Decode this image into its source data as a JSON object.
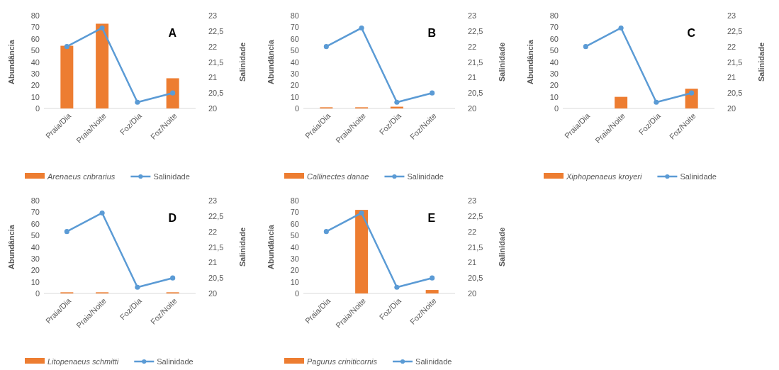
{
  "chart_data": [
    {
      "type": "bar",
      "annotations": [
        "A"
      ],
      "ylabel": "Abundância",
      "y2label": "Salinidade",
      "categories": [
        "Praia/Dia",
        "Praia/Noite",
        "Foz/Dia",
        "Foz/Noite"
      ],
      "ylim": [
        0,
        80
      ],
      "yticks": [
        0,
        10,
        20,
        30,
        40,
        50,
        60,
        70,
        80
      ],
      "y2lim": [
        20,
        23
      ],
      "y2ticks": [
        20,
        {
          "value": 20.5,
          "label": "20,5"
        },
        21,
        {
          "value": 21.5,
          "label": "21,5"
        },
        22,
        {
          "value": 22.5,
          "label": "22,5"
        },
        23
      ],
      "legend": "bottom",
      "marker": "circle",
      "series": [
        {
          "name": "Arenaeus cribrarius",
          "color": "#ed7d31",
          "values": [
            54,
            73,
            0,
            26
          ]
        },
        {
          "name": "Salinidade",
          "type": "line",
          "axis": "y2",
          "color": "#5b9bd5",
          "values": [
            22,
            22.6,
            20.2,
            20.5
          ]
        }
      ]
    },
    {
      "type": "bar",
      "annotations": [
        "B"
      ],
      "ylabel": "Abundância",
      "y2label": "Salinidade",
      "categories": [
        "Praia/Dia",
        "Praia/Noite",
        "Foz/Dia",
        "Foz/Noite"
      ],
      "ylim": [
        0,
        80
      ],
      "yticks": [
        0,
        10,
        20,
        30,
        40,
        50,
        60,
        70,
        80
      ],
      "y2lim": [
        20,
        23
      ],
      "y2ticks": [
        20,
        {
          "value": 20.5,
          "label": "20,5"
        },
        21,
        {
          "value": 21.5,
          "label": "21,5"
        },
        22,
        {
          "value": 22.5,
          "label": "22,5"
        },
        23
      ],
      "legend": "bottom",
      "marker": "circle",
      "series": [
        {
          "name": "Callinectes danae",
          "color": "#ed7d31",
          "values": [
            1,
            1,
            1.5,
            0
          ]
        },
        {
          "name": "Salinidade",
          "type": "line",
          "axis": "y2",
          "color": "#5b9bd5",
          "values": [
            22,
            22.6,
            20.2,
            20.5
          ]
        }
      ]
    },
    {
      "type": "bar",
      "annotations": [
        "C"
      ],
      "ylabel": "Abundância",
      "y2label": "Salinidade",
      "categories": [
        "Praia/Dia",
        "Praia/Noite",
        "Foz/Dia",
        "Foz/Noite"
      ],
      "ylim": [
        0,
        80
      ],
      "yticks": [
        0,
        10,
        20,
        30,
        40,
        50,
        60,
        70,
        80
      ],
      "y2lim": [
        20,
        23
      ],
      "y2ticks": [
        20,
        {
          "value": 20.5,
          "label": "20,5"
        },
        21,
        {
          "value": 21.5,
          "label": "21,5"
        },
        22,
        {
          "value": 22.5,
          "label": "22,5"
        },
        23
      ],
      "legend": "bottom",
      "marker": "circle",
      "series": [
        {
          "name": "Xiphopenaeus kroyeri",
          "color": "#ed7d31",
          "values": [
            0,
            10,
            0,
            17
          ]
        },
        {
          "name": "Salinidade",
          "type": "line",
          "axis": "y2",
          "color": "#5b9bd5",
          "values": [
            22,
            22.6,
            20.2,
            20.5
          ]
        }
      ]
    },
    {
      "type": "bar",
      "annotations": [
        "D"
      ],
      "ylabel": "Abundância",
      "y2label": "Salinidade",
      "categories": [
        "Praia/Dia",
        "Praia/Noite",
        "Foz/Dia",
        "Foz/Noite"
      ],
      "ylim": [
        0,
        80
      ],
      "yticks": [
        0,
        10,
        20,
        30,
        40,
        50,
        60,
        70,
        80
      ],
      "y2lim": [
        20,
        23
      ],
      "y2ticks": [
        20,
        {
          "value": 20.5,
          "label": "20,5"
        },
        21,
        {
          "value": 21.5,
          "label": "21,5"
        },
        22,
        {
          "value": 22.5,
          "label": "22,5"
        },
        23
      ],
      "legend": "bottom",
      "marker": "circle",
      "series": [
        {
          "name": "Litopenaeus schmitti",
          "color": "#ed7d31",
          "values": [
            1,
            1,
            0,
            1
          ]
        },
        {
          "name": "Salinidade",
          "type": "line",
          "axis": "y2",
          "color": "#5b9bd5",
          "values": [
            22,
            22.6,
            20.2,
            20.5
          ]
        }
      ]
    },
    {
      "type": "bar",
      "annotations": [
        "E"
      ],
      "ylabel": "Abundância",
      "y2label": "Salinidade",
      "categories": [
        "Praia/Dia",
        "Praia/Noite",
        "Foz/Dia",
        "Foz/Noite"
      ],
      "ylim": [
        0,
        80
      ],
      "yticks": [
        0,
        10,
        20,
        30,
        40,
        50,
        60,
        70,
        80
      ],
      "y2lim": [
        20,
        23
      ],
      "y2ticks": [
        20,
        {
          "value": 20.5,
          "label": "20,5"
        },
        21,
        {
          "value": 21.5,
          "label": "21,5"
        },
        22,
        {
          "value": 22.5,
          "label": "22,5"
        },
        23
      ],
      "legend": "bottom",
      "marker": "circle",
      "series": [
        {
          "name": "Pagurus criniticornis",
          "color": "#ed7d31",
          "values": [
            0,
            72,
            0,
            3
          ]
        },
        {
          "name": "Salinidade",
          "type": "line",
          "axis": "y2",
          "color": "#5b9bd5",
          "values": [
            22,
            22.6,
            20.2,
            20.5
          ]
        }
      ]
    }
  ]
}
